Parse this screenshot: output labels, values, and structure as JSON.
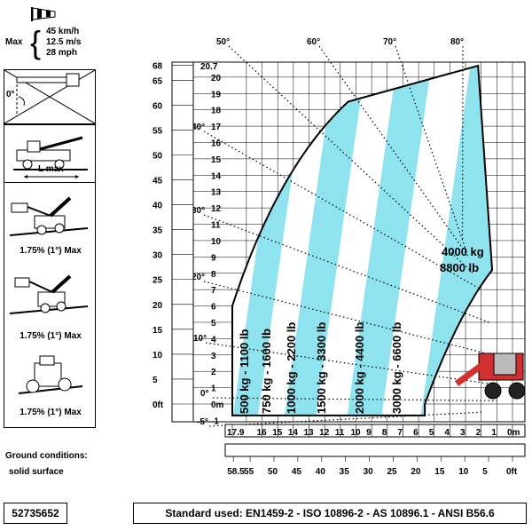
{
  "wind": {
    "label": "Max",
    "lines": [
      "45 km/h",
      "12.5 m/s",
      "28 mph"
    ]
  },
  "left_panel": {
    "angle_label": "0°",
    "lmax_label": "L max",
    "tilt_labels": [
      "1.75% (1°) Max",
      "1.75% (1°) Max",
      "1.75% (1°) Max"
    ]
  },
  "ground": {
    "title": "Ground conditions:",
    "value": "solid surface"
  },
  "part_number": "52735652",
  "standard": "Standard used: EN1459-2 - ISO 10896-2 - AS 10896.1 - ANSI B56.6",
  "colors": {
    "cyan": "#8ee3ee",
    "outline": "#000000",
    "machine_red": "#d32f2f"
  },
  "chart_data": {
    "type": "load-chart",
    "height_ft_ticks": [
      "68",
      "65",
      "60",
      "55",
      "50",
      "45",
      "40",
      "35",
      "30",
      "25",
      "20",
      "15",
      "10",
      "5",
      "0ft"
    ],
    "height_m_ticks": [
      "20.7",
      "20",
      "19",
      "18",
      "17",
      "16",
      "15",
      "14",
      "13",
      "12",
      "11",
      "10",
      "9",
      "8",
      "7",
      "6",
      "5",
      "4",
      "3",
      "2",
      "1",
      "0m",
      "-1"
    ],
    "reach_m_ticks": [
      "17.9",
      "16",
      "15",
      "14",
      "13",
      "12",
      "11",
      "10",
      "9",
      "8",
      "7",
      "6",
      "5",
      "4",
      "3",
      "2",
      "1",
      "0m"
    ],
    "reach_ft_ticks": [
      "58.5",
      "55",
      "50",
      "45",
      "40",
      "35",
      "30",
      "25",
      "20",
      "15",
      "10",
      "5",
      "0ft"
    ],
    "angle_labels": [
      "-5°",
      "0°",
      "10°",
      "20°",
      "30°",
      "40°",
      "50°",
      "60°",
      "70°",
      "80°"
    ],
    "load_zones": [
      {
        "label": "500 kg - 1100 lb",
        "color": "cyan"
      },
      {
        "label": "750 kg - 1600 lb",
        "color": "white"
      },
      {
        "label": "1000 kg - 2200 lb",
        "color": "cyan"
      },
      {
        "label": "1500 kg - 3300 lb",
        "color": "white"
      },
      {
        "label": "2000 kg - 4400 lb",
        "color": "cyan"
      },
      {
        "label": "3000 kg - 6600 lb",
        "color": "white"
      },
      {
        "label": "4000 kg 8800 lb",
        "color": "cyan"
      }
    ],
    "max_height_m": 20.7,
    "max_reach_m": 17.9
  }
}
